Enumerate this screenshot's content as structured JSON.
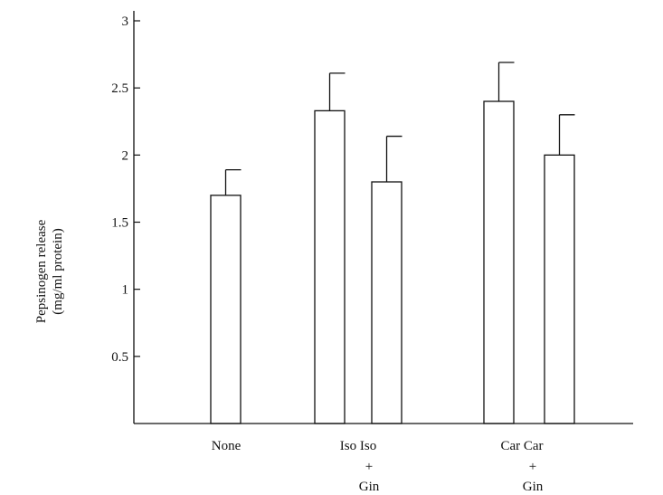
{
  "chart_data": {
    "type": "bar",
    "ylabel_lines": [
      "Pepsinogen release",
      "(mg/ml protein)"
    ],
    "ylim": [
      0,
      3
    ],
    "yticks": [
      0.5,
      1,
      1.5,
      2,
      2.5,
      3
    ],
    "ytick_labels": [
      "0.5",
      "1",
      "1.5",
      "2",
      "2.5",
      "3"
    ],
    "groups": [
      {
        "label_lines": [
          "None"
        ]
      },
      {
        "label_lines": [
          "Iso Iso",
          "+",
          "Gin"
        ]
      },
      {
        "label_lines": [
          "Car Car",
          "+",
          "Gin"
        ]
      }
    ],
    "bars": [
      {
        "group": 0,
        "value": 1.7,
        "error": 0.19
      },
      {
        "group": 1,
        "value": 2.33,
        "error": 0.28
      },
      {
        "group": 1,
        "value": 1.8,
        "error": 0.34
      },
      {
        "group": 2,
        "value": 2.4,
        "error": 0.29
      },
      {
        "group": 2,
        "value": 2.0,
        "error": 0.3
      }
    ]
  }
}
